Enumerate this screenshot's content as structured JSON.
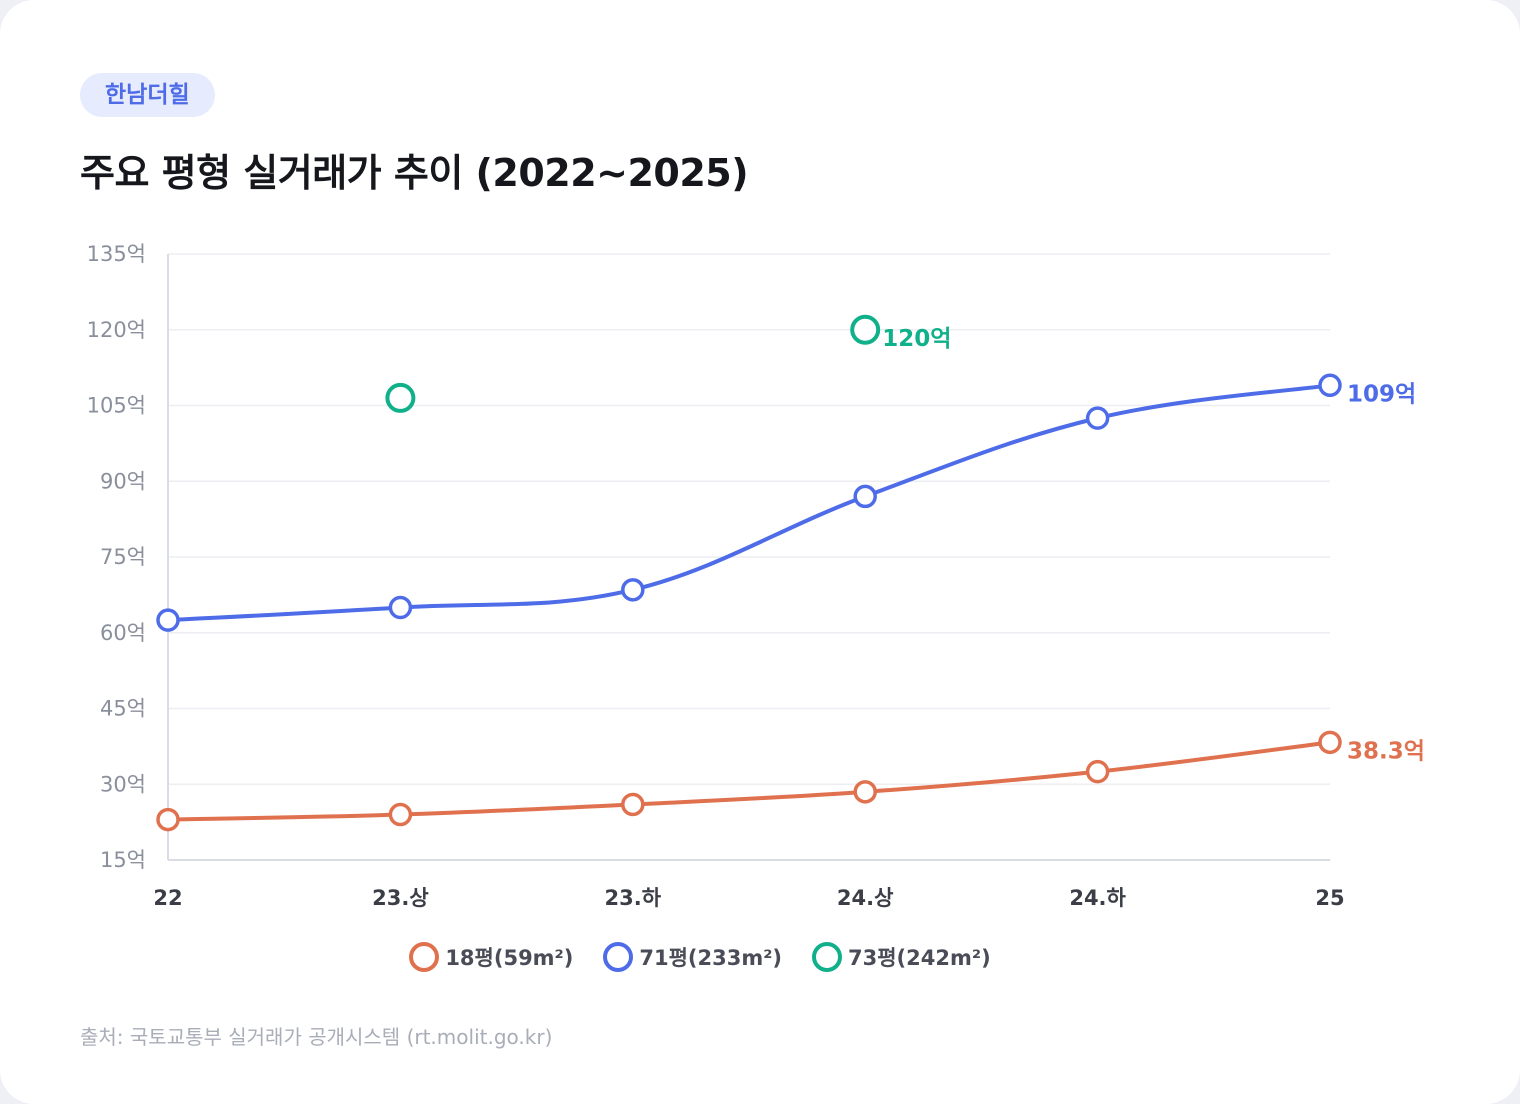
{
  "tag": "한남더힐",
  "title": "주요 평형 실거래가 추이 (2022~2025)",
  "source": "출처: 국토교통부 실거래가 공개시스템 (rt.molit.go.kr)",
  "chart_data": {
    "type": "line",
    "title": "주요 평형 실거래가 추이 (2022~2025)",
    "categories": [
      "22",
      "23.상",
      "23.하",
      "24.상",
      "24.하",
      "25"
    ],
    "ylim": [
      15,
      135
    ],
    "yticks": [
      15,
      30,
      45,
      60,
      75,
      90,
      105,
      120,
      135
    ],
    "ytick_suffix": "억",
    "grid": true,
    "legend_position": "bottom",
    "series": [
      {
        "name": "18평(59m²)",
        "color": "#e0714f",
        "values": [
          23,
          24,
          26,
          28.5,
          32.5,
          38.3
        ],
        "end_label": "38.3억",
        "line": true
      },
      {
        "name": "71평(233m²)",
        "color": "#4e6ce8",
        "values": [
          62.5,
          65,
          68.5,
          87,
          102.5,
          109
        ],
        "end_label": "109억",
        "line": true
      },
      {
        "name": "73평(242m²)",
        "color": "#10b08a",
        "values": [
          null,
          106.5,
          null,
          120,
          null,
          null
        ],
        "end_label": "120억",
        "line": false
      }
    ]
  }
}
